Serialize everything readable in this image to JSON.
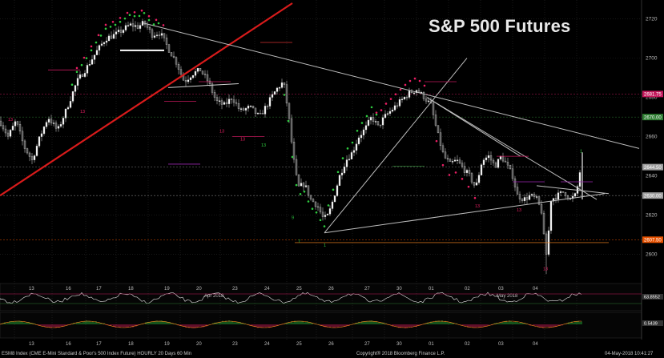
{
  "chart_data": {
    "type": "candlestick",
    "title": "S&P 500 Futures",
    "timeframe": "HOURLY",
    "y_axis": {
      "position": "right",
      "range": [
        2586,
        2728
      ],
      "ticks": [
        "2720",
        "2700",
        "2680",
        "2660",
        "2640",
        "2620",
        "2600"
      ]
    },
    "x_axis": {
      "ticks": [
        "13",
        "16",
        "17",
        "18",
        "19",
        "20",
        "23",
        "24",
        "25",
        "26",
        "27",
        "30",
        "01",
        "02",
        "03",
        "04"
      ],
      "month_labels": [
        "Apr 2018",
        "May 2018"
      ]
    },
    "price_tags": [
      {
        "value": 2681.75,
        "label": "2681.75",
        "color": "#c2185b"
      },
      {
        "value": 2670.0,
        "label": "2670.00",
        "color": "#2e7d32"
      },
      {
        "value": 2644.5,
        "label": "2644.50",
        "color": "#9e9e9e"
      },
      {
        "value": 2630.0,
        "label": "2630.00",
        "color": "#9e9e9e"
      },
      {
        "value": 2607.5,
        "label": "2607.50",
        "color": "#e65100"
      }
    ],
    "close_path": [
      [
        0,
        2668
      ],
      [
        10,
        2660
      ],
      [
        20,
        2668
      ],
      [
        30,
        2655
      ],
      [
        40,
        2648
      ],
      [
        50,
        2660
      ],
      [
        60,
        2670
      ],
      [
        72,
        2663
      ],
      [
        84,
        2675
      ],
      [
        96,
        2688
      ],
      [
        108,
        2695
      ],
      [
        120,
        2703
      ],
      [
        132,
        2710
      ],
      [
        144,
        2712
      ],
      [
        152,
        2714
      ],
      [
        162,
        2717
      ],
      [
        172,
        2716
      ],
      [
        180,
        2718
      ],
      [
        190,
        2712
      ],
      [
        200,
        2713
      ],
      [
        210,
        2705
      ],
      [
        220,
        2698
      ],
      [
        230,
        2688
      ],
      [
        240,
        2692
      ],
      [
        250,
        2694
      ],
      [
        260,
        2688
      ],
      [
        270,
        2678
      ],
      [
        280,
        2676
      ],
      [
        290,
        2680
      ],
      [
        300,
        2673
      ],
      [
        312,
        2675
      ],
      [
        324,
        2670
      ],
      [
        336,
        2678
      ],
      [
        345,
        2684
      ],
      [
        354,
        2688
      ],
      [
        360,
        2672
      ],
      [
        366,
        2650
      ],
      [
        372,
        2634
      ],
      [
        380,
        2636
      ],
      [
        388,
        2628
      ],
      [
        396,
        2625
      ],
      [
        404,
        2618
      ],
      [
        410,
        2620
      ],
      [
        416,
        2628
      ],
      [
        424,
        2640
      ],
      [
        432,
        2648
      ],
      [
        440,
        2652
      ],
      [
        448,
        2660
      ],
      [
        456,
        2664
      ],
      [
        464,
        2670
      ],
      [
        472,
        2665
      ],
      [
        480,
        2670
      ],
      [
        490,
        2674
      ],
      [
        500,
        2678
      ],
      [
        510,
        2682
      ],
      [
        520,
        2684
      ],
      [
        530,
        2680
      ],
      [
        538,
        2676
      ],
      [
        546,
        2662
      ],
      [
        554,
        2650
      ],
      [
        562,
        2646
      ],
      [
        570,
        2648
      ],
      [
        578,
        2644
      ],
      [
        586,
        2640
      ],
      [
        594,
        2634
      ],
      [
        602,
        2648
      ],
      [
        610,
        2650
      ],
      [
        618,
        2645
      ],
      [
        626,
        2650
      ],
      [
        632,
        2646
      ],
      [
        640,
        2640
      ],
      [
        646,
        2630
      ],
      [
        654,
        2628
      ],
      [
        662,
        2630
      ],
      [
        670,
        2628
      ],
      [
        676,
        2622
      ],
      [
        682,
        2596
      ],
      [
        688,
        2628
      ],
      [
        696,
        2630
      ],
      [
        704,
        2632
      ],
      [
        712,
        2628
      ],
      [
        718,
        2630
      ],
      [
        722,
        2636
      ],
      [
        726,
        2648
      ]
    ],
    "indicators": [
      {
        "name": "panel1",
        "last_value_label": "63.8552"
      },
      {
        "name": "panel2",
        "last_value_label": "0.5439"
      }
    ],
    "annotations": {
      "numbers_visible": [
        "13",
        "9",
        "7",
        "1"
      ]
    }
  },
  "footer": {
    "left": "ESM8 Index (CME E-Mini Standard & Poor's 500 Index Future) HOURLY 20 Days 60 Min",
    "center": "Copyright® 2018 Bloomberg Finance L.P.",
    "right": "04-May-2018 10:41:27"
  }
}
